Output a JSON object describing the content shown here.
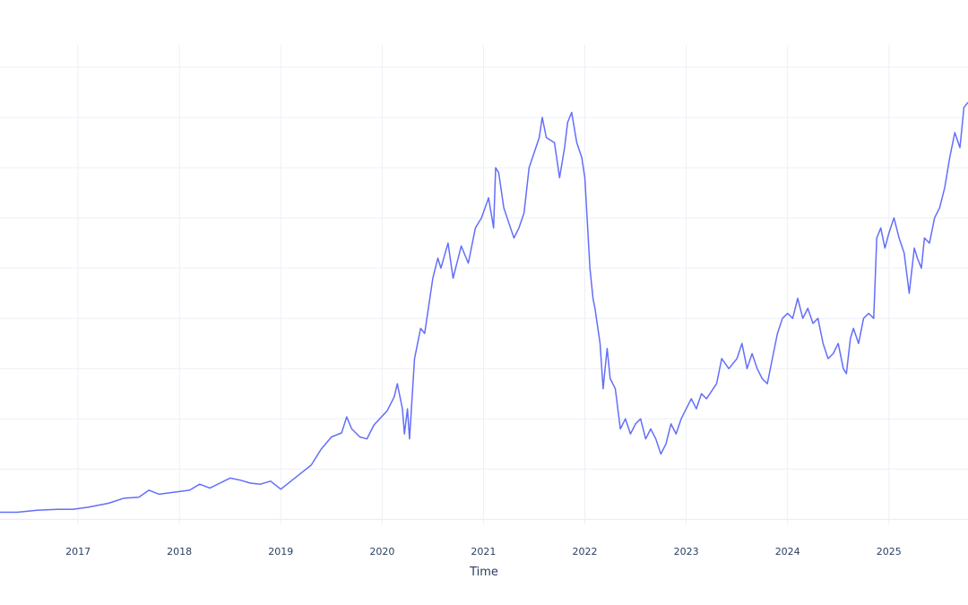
{
  "chart_data": {
    "type": "line",
    "title": "",
    "xlabel": "Time",
    "ylabel": "",
    "x_tick_labels": [
      "2017",
      "2018",
      "2019",
      "2020",
      "2021",
      "2022",
      "2023",
      "2024",
      "2025"
    ],
    "xlim": [
      2016.23,
      2025.78
    ],
    "ylim": [
      -5,
      450
    ],
    "y_gridlines": [
      0,
      50,
      100,
      150,
      200,
      250,
      300,
      350,
      400,
      450
    ],
    "grid": true,
    "legend": "none",
    "series": [
      {
        "color": "#636efa",
        "points": [
          [
            2016.23,
            7
          ],
          [
            2016.4,
            7
          ],
          [
            2016.6,
            9
          ],
          [
            2016.8,
            10
          ],
          [
            2016.95,
            10
          ],
          [
            2017.1,
            12
          ],
          [
            2017.3,
            16
          ],
          [
            2017.45,
            21
          ],
          [
            2017.6,
            22
          ],
          [
            2017.7,
            29
          ],
          [
            2017.8,
            25
          ],
          [
            2017.95,
            27
          ],
          [
            2018.1,
            29
          ],
          [
            2018.2,
            35
          ],
          [
            2018.3,
            31
          ],
          [
            2018.4,
            36
          ],
          [
            2018.5,
            41
          ],
          [
            2018.6,
            39
          ],
          [
            2018.7,
            36
          ],
          [
            2018.8,
            35
          ],
          [
            2018.9,
            38
          ],
          [
            2019.0,
            30
          ],
          [
            2019.1,
            38
          ],
          [
            2019.2,
            46
          ],
          [
            2019.3,
            54
          ],
          [
            2019.4,
            70
          ],
          [
            2019.5,
            82
          ],
          [
            2019.6,
            86
          ],
          [
            2019.65,
            102
          ],
          [
            2019.7,
            90
          ],
          [
            2019.78,
            82
          ],
          [
            2019.85,
            80
          ],
          [
            2019.92,
            94
          ],
          [
            2020.05,
            108
          ],
          [
            2020.12,
            122
          ],
          [
            2020.15,
            135
          ],
          [
            2020.2,
            110
          ],
          [
            2020.22,
            85
          ],
          [
            2020.25,
            110
          ],
          [
            2020.27,
            80
          ],
          [
            2020.32,
            160
          ],
          [
            2020.38,
            190
          ],
          [
            2020.42,
            185
          ],
          [
            2020.5,
            240
          ],
          [
            2020.55,
            260
          ],
          [
            2020.58,
            250
          ],
          [
            2020.65,
            275
          ],
          [
            2020.7,
            240
          ],
          [
            2020.78,
            272
          ],
          [
            2020.85,
            255
          ],
          [
            2020.92,
            290
          ],
          [
            2020.98,
            300
          ],
          [
            2021.05,
            320
          ],
          [
            2021.1,
            290
          ],
          [
            2021.12,
            350
          ],
          [
            2021.15,
            345
          ],
          [
            2021.2,
            310
          ],
          [
            2021.25,
            295
          ],
          [
            2021.3,
            280
          ],
          [
            2021.35,
            290
          ],
          [
            2021.4,
            305
          ],
          [
            2021.45,
            350
          ],
          [
            2021.5,
            365
          ],
          [
            2021.55,
            380
          ],
          [
            2021.58,
            400
          ],
          [
            2021.62,
            380
          ],
          [
            2021.7,
            375
          ],
          [
            2021.75,
            340
          ],
          [
            2021.8,
            370
          ],
          [
            2021.83,
            395
          ],
          [
            2021.87,
            405
          ],
          [
            2021.92,
            375
          ],
          [
            2021.97,
            360
          ],
          [
            2022.0,
            340
          ],
          [
            2022.05,
            250
          ],
          [
            2022.08,
            220
          ],
          [
            2022.1,
            210
          ],
          [
            2022.15,
            175
          ],
          [
            2022.18,
            130
          ],
          [
            2022.2,
            150
          ],
          [
            2022.22,
            170
          ],
          [
            2022.25,
            140
          ],
          [
            2022.3,
            130
          ],
          [
            2022.35,
            90
          ],
          [
            2022.4,
            100
          ],
          [
            2022.45,
            85
          ],
          [
            2022.5,
            95
          ],
          [
            2022.55,
            100
          ],
          [
            2022.6,
            80
          ],
          [
            2022.65,
            90
          ],
          [
            2022.7,
            80
          ],
          [
            2022.75,
            65
          ],
          [
            2022.8,
            75
          ],
          [
            2022.85,
            95
          ],
          [
            2022.9,
            85
          ],
          [
            2022.95,
            100
          ],
          [
            2023.0,
            110
          ],
          [
            2023.05,
            120
          ],
          [
            2023.1,
            110
          ],
          [
            2023.15,
            125
          ],
          [
            2023.2,
            120
          ],
          [
            2023.3,
            135
          ],
          [
            2023.35,
            160
          ],
          [
            2023.42,
            150
          ],
          [
            2023.5,
            160
          ],
          [
            2023.55,
            175
          ],
          [
            2023.6,
            150
          ],
          [
            2023.65,
            165
          ],
          [
            2023.7,
            150
          ],
          [
            2023.75,
            140
          ],
          [
            2023.8,
            135
          ],
          [
            2023.85,
            160
          ],
          [
            2023.9,
            185
          ],
          [
            2023.95,
            200
          ],
          [
            2024.0,
            205
          ],
          [
            2024.05,
            200
          ],
          [
            2024.1,
            220
          ],
          [
            2024.15,
            200
          ],
          [
            2024.2,
            210
          ],
          [
            2024.25,
            195
          ],
          [
            2024.3,
            200
          ],
          [
            2024.35,
            175
          ],
          [
            2024.4,
            160
          ],
          [
            2024.45,
            165
          ],
          [
            2024.5,
            175
          ],
          [
            2024.55,
            150
          ],
          [
            2024.58,
            145
          ],
          [
            2024.62,
            180
          ],
          [
            2024.65,
            190
          ],
          [
            2024.7,
            175
          ],
          [
            2024.75,
            200
          ],
          [
            2024.8,
            205
          ],
          [
            2024.85,
            200
          ],
          [
            2024.88,
            280
          ],
          [
            2024.92,
            290
          ],
          [
            2024.96,
            270
          ],
          [
            2025.0,
            285
          ],
          [
            2025.05,
            300
          ],
          [
            2025.1,
            280
          ],
          [
            2025.15,
            265
          ],
          [
            2025.2,
            225
          ],
          [
            2025.25,
            270
          ],
          [
            2025.28,
            260
          ],
          [
            2025.32,
            250
          ],
          [
            2025.35,
            280
          ],
          [
            2025.4,
            275
          ],
          [
            2025.45,
            300
          ],
          [
            2025.5,
            310
          ],
          [
            2025.55,
            330
          ],
          [
            2025.6,
            360
          ],
          [
            2025.65,
            385
          ],
          [
            2025.7,
            370
          ],
          [
            2025.74,
            410
          ],
          [
            2025.78,
            415
          ]
        ]
      }
    ]
  }
}
